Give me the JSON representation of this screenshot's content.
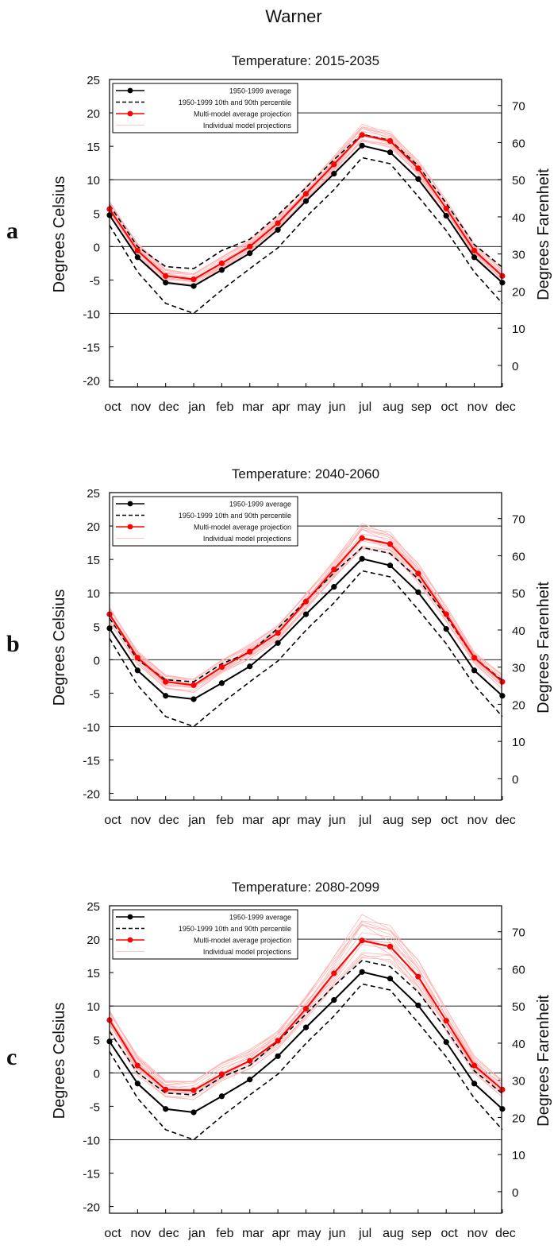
{
  "figure": {
    "title": "Warner"
  },
  "legend": {
    "items": [
      "1950-1999 average",
      "1950-1999 10th and 90th percentile",
      "Multi-model average projection",
      "Individual model projections"
    ]
  },
  "colors": {
    "historical": "#000000",
    "projection": "#ff0000",
    "individual": "#ffb3b3",
    "gridline": "#000000"
  },
  "chart_data": [
    {
      "type": "line",
      "panel_label": "a",
      "title": "Temperature: 2015-2035",
      "ylabel": "Degrees Celsius",
      "ylabel_right": "Degrees Farenheit",
      "categories": [
        "oct",
        "nov",
        "dec",
        "jan",
        "feb",
        "mar",
        "apr",
        "may",
        "jun",
        "jul",
        "aug",
        "sep",
        "oct",
        "nov",
        "dec"
      ],
      "ylim": [
        -21,
        25
      ],
      "yticks": [
        -20,
        -15,
        -10,
        -5,
        0,
        5,
        10,
        15,
        20,
        25
      ],
      "yticks_right": [
        0,
        10,
        20,
        30,
        40,
        50,
        60,
        70
      ],
      "hlines": [
        -10,
        0,
        10,
        20
      ],
      "series": [
        {
          "name": "1950-1999 average",
          "style": "solid-black-markers",
          "values": [
            4.7,
            -1.6,
            -5.4,
            -5.9,
            -3.5,
            -1.0,
            2.5,
            6.8,
            10.9,
            15.1,
            14.1,
            10.1,
            4.6,
            -1.6,
            -5.4
          ]
        },
        {
          "name": "1950-1999 10th and 90th percentile",
          "style": "dashed-black",
          "values": [
            6.2,
            0.0,
            -3.0,
            -3.3,
            -0.6,
            1.1,
            4.7,
            8.8,
            13.0,
            16.8,
            15.9,
            12.1,
            6.5,
            0.3,
            -3.1
          ]
        },
        {
          "name": "1950-1999 10th and 90th percentile",
          "style": "dashed-black",
          "values": [
            3.2,
            -3.8,
            -8.5,
            -10.0,
            -6.5,
            -3.3,
            -0.2,
            4.4,
            8.5,
            13.3,
            12.4,
            7.5,
            2.4,
            -3.8,
            -8.5
          ]
        },
        {
          "name": "Multi-model average projection",
          "style": "solid-red-markers",
          "values": [
            5.6,
            -0.6,
            -4.4,
            -4.9,
            -2.5,
            0.0,
            3.5,
            7.9,
            12.3,
            16.7,
            15.8,
            11.7,
            5.7,
            -0.6,
            -4.4
          ]
        }
      ],
      "individual_band": {
        "lower": [
          4.5,
          -1.5,
          -5.4,
          -5.9,
          -3.5,
          -1.0,
          2.5,
          6.8,
          11.3,
          15.7,
          14.8,
          10.7,
          4.5,
          -1.6,
          -5.4
        ],
        "upper": [
          6.8,
          0.5,
          -3.4,
          -3.9,
          -1.5,
          1.0,
          4.5,
          9.1,
          13.5,
          18.3,
          17.2,
          12.9,
          7.0,
          0.5,
          -3.4
        ],
        "count": 16
      }
    },
    {
      "type": "line",
      "panel_label": "b",
      "title": "Temperature: 2040-2060",
      "ylabel": "Degrees Celsius",
      "ylabel_right": "Degrees Farenheit",
      "categories": [
        "oct",
        "nov",
        "dec",
        "jan",
        "feb",
        "mar",
        "apr",
        "may",
        "jun",
        "jul",
        "aug",
        "sep",
        "oct",
        "nov",
        "dec"
      ],
      "ylim": [
        -21,
        25
      ],
      "yticks": [
        -20,
        -15,
        -10,
        -5,
        0,
        5,
        10,
        15,
        20,
        25
      ],
      "yticks_right": [
        0,
        10,
        20,
        30,
        40,
        50,
        60,
        70
      ],
      "hlines": [
        -10,
        0,
        10,
        20
      ],
      "series": [
        {
          "name": "1950-1999 average",
          "style": "solid-black-markers",
          "values": [
            4.7,
            -1.6,
            -5.4,
            -5.9,
            -3.5,
            -1.0,
            2.5,
            6.8,
            10.9,
            15.1,
            14.1,
            10.1,
            4.6,
            -1.6,
            -5.4
          ]
        },
        {
          "name": "1950-1999 10th and 90th percentile",
          "style": "dashed-black",
          "values": [
            6.2,
            0.0,
            -3.0,
            -3.3,
            -0.6,
            1.1,
            4.7,
            8.8,
            13.0,
            16.8,
            15.9,
            12.1,
            6.5,
            0.3,
            -3.1
          ]
        },
        {
          "name": "1950-1999 10th and 90th percentile",
          "style": "dashed-black",
          "values": [
            3.2,
            -3.8,
            -8.5,
            -10.0,
            -6.5,
            -3.3,
            -0.2,
            4.4,
            8.5,
            13.3,
            12.4,
            7.5,
            2.4,
            -3.8,
            -8.5
          ]
        },
        {
          "name": "Multi-model average projection",
          "style": "solid-red-markers",
          "values": [
            6.8,
            0.3,
            -3.3,
            -3.8,
            -1.1,
            1.2,
            4.0,
            8.7,
            13.5,
            18.2,
            17.3,
            12.9,
            6.8,
            0.3,
            -3.3
          ]
        }
      ],
      "individual_band": {
        "lower": [
          5.6,
          -0.7,
          -4.4,
          -4.9,
          -2.2,
          0.1,
          2.9,
          7.5,
          12.3,
          16.5,
          15.8,
          11.5,
          5.7,
          -0.7,
          -4.4
        ],
        "upper": [
          7.9,
          1.3,
          -2.3,
          -2.7,
          0.0,
          2.3,
          5.2,
          10.0,
          14.8,
          20.4,
          19.1,
          14.4,
          8.0,
          1.3,
          -2.2
        ],
        "count": 16
      }
    },
    {
      "type": "line",
      "panel_label": "c",
      "title": "Temperature: 2080-2099",
      "ylabel": "Degrees Celsius",
      "ylabel_right": "Degrees Farenheit",
      "categories": [
        "oct",
        "nov",
        "dec",
        "jan",
        "feb",
        "mar",
        "apr",
        "may",
        "jun",
        "jul",
        "aug",
        "sep",
        "oct",
        "nov",
        "dec"
      ],
      "ylim": [
        -21,
        25
      ],
      "yticks": [
        -20,
        -15,
        -10,
        -5,
        0,
        5,
        10,
        15,
        20,
        25
      ],
      "yticks_right": [
        0,
        10,
        20,
        30,
        40,
        50,
        60,
        70
      ],
      "hlines": [
        -10,
        0,
        10,
        20
      ],
      "series": [
        {
          "name": "1950-1999 average",
          "style": "solid-black-markers",
          "values": [
            4.7,
            -1.6,
            -5.4,
            -5.9,
            -3.5,
            -1.0,
            2.5,
            6.8,
            10.9,
            15.1,
            14.1,
            10.1,
            4.6,
            -1.6,
            -5.4
          ]
        },
        {
          "name": "1950-1999 10th and 90th percentile",
          "style": "dashed-black",
          "values": [
            6.2,
            0.0,
            -3.0,
            -3.3,
            -0.6,
            1.1,
            4.7,
            8.8,
            13.0,
            16.8,
            15.9,
            12.1,
            6.5,
            0.3,
            -3.1
          ]
        },
        {
          "name": "1950-1999 10th and 90th percentile",
          "style": "dashed-black",
          "values": [
            3.2,
            -3.8,
            -8.5,
            -10.0,
            -6.5,
            -3.3,
            -0.2,
            4.4,
            8.5,
            13.3,
            12.4,
            7.5,
            2.4,
            -3.8,
            -8.5
          ]
        },
        {
          "name": "Multi-model average projection",
          "style": "solid-red-markers",
          "values": [
            7.9,
            1.1,
            -2.5,
            -2.6,
            -0.2,
            1.8,
            4.8,
            9.6,
            14.9,
            19.8,
            18.9,
            14.4,
            7.8,
            1.1,
            -2.5
          ]
        }
      ],
      "individual_band": {
        "lower": [
          6.4,
          -0.4,
          -3.7,
          -4.0,
          -1.5,
          0.6,
          3.6,
          8.0,
          13.0,
          17.1,
          16.6,
          12.3,
          6.2,
          -0.3,
          -3.6
        ],
        "upper": [
          9.4,
          2.6,
          -1.2,
          -1.0,
          1.6,
          3.5,
          6.3,
          11.6,
          17.4,
          23.7,
          22.1,
          16.9,
          9.6,
          2.8,
          -1.1
        ],
        "count": 16
      }
    }
  ]
}
